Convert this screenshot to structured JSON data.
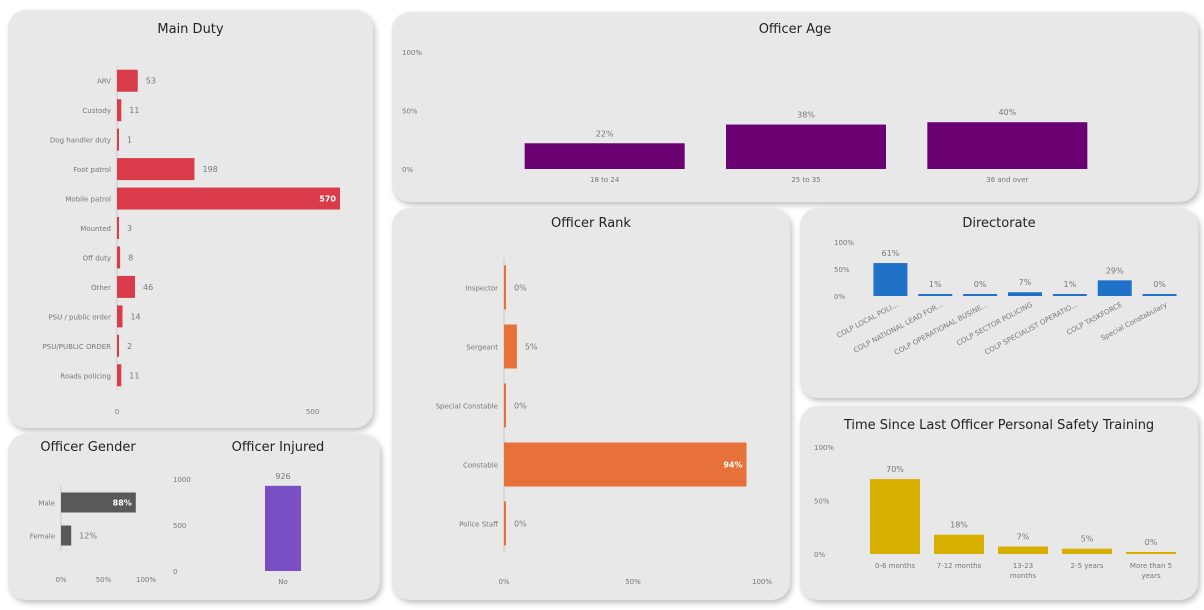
{
  "colors": {
    "duty": "#d93b4a",
    "age": "#6b0072",
    "rank": "#e8713a",
    "directorate": "#1f72c8",
    "gender": "#595959",
    "injured": "#7b4fc4",
    "training": "#d8b000"
  },
  "chart_data": [
    {
      "id": "duty",
      "type": "bar",
      "orientation": "horizontal",
      "title": "Main Duty",
      "categories": [
        "ARV",
        "Custody",
        "Dog handler duty",
        "Foot patrol",
        "Mobile patrol",
        "Mounted",
        "Off duty",
        "Other",
        "PSU / public order",
        "PSU/PUBLIC ORDER",
        "Roads policing"
      ],
      "values": [
        53,
        11,
        1,
        198,
        570,
        3,
        8,
        46,
        14,
        2,
        11
      ],
      "value_labels": [
        "53",
        "11",
        "1",
        "198",
        "570",
        "3",
        "8",
        "46",
        "14",
        "2",
        "11"
      ],
      "xlim": [
        0,
        600
      ],
      "ticks": [
        0,
        500
      ],
      "tick_labels": [
        "0",
        "500"
      ]
    },
    {
      "id": "age",
      "type": "bar",
      "title": "Officer Age",
      "categories": [
        "18 to 24",
        "25 to 35",
        "36 and over"
      ],
      "values": [
        22,
        38,
        40
      ],
      "value_labels": [
        "22%",
        "38%",
        "40%"
      ],
      "ylim": [
        0,
        100
      ],
      "ticks": [
        0,
        50,
        100
      ],
      "tick_labels": [
        "0%",
        "50%",
        "100%"
      ]
    },
    {
      "id": "rank",
      "type": "bar",
      "orientation": "horizontal",
      "title": "Officer Rank",
      "categories": [
        "Inspector",
        "Sergeant",
        "Special Constable",
        "Constable",
        "Police Staff"
      ],
      "values": [
        0,
        5,
        0,
        94,
        0
      ],
      "value_labels": [
        "0%",
        "5%",
        "0%",
        "94%",
        "0%"
      ],
      "xlim": [
        0,
        100
      ],
      "ticks": [
        0,
        50,
        100
      ],
      "tick_labels": [
        "0%",
        "50%",
        "100%"
      ]
    },
    {
      "id": "directorate",
      "type": "bar",
      "title": "Directorate",
      "categories": [
        "COLP LOCAL POLI...",
        "COLP NATIONAL LEAD FOR...",
        "COLP OPERATIONAL BUSINE...",
        "COLP SECTOR POLICING",
        "COLP SPECIALIST OPERATIO...",
        "COLP TASKFORCE",
        "Special Constabulary"
      ],
      "values": [
        61,
        1,
        0,
        7,
        1,
        29,
        0
      ],
      "value_labels": [
        "61%",
        "1%",
        "0%",
        "7%",
        "1%",
        "29%",
        "0%"
      ],
      "ylim": [
        0,
        100
      ],
      "ticks": [
        0,
        50,
        100
      ],
      "tick_labels": [
        "0%",
        "50%",
        "100%"
      ]
    },
    {
      "id": "gender",
      "type": "bar",
      "orientation": "horizontal",
      "title": "Officer Gender",
      "categories": [
        "Male",
        "Female"
      ],
      "values": [
        88,
        12
      ],
      "value_labels": [
        "88%",
        "12%"
      ],
      "xlim": [
        0,
        100
      ],
      "ticks": [
        0,
        50,
        100
      ],
      "tick_labels": [
        "0%",
        "50%",
        "100%"
      ]
    },
    {
      "id": "injured",
      "type": "bar",
      "title": "Officer Injured",
      "categories": [
        "No"
      ],
      "values": [
        926
      ],
      "value_labels": [
        "926"
      ],
      "ylim": [
        0,
        1000
      ],
      "ticks": [
        0,
        500,
        1000
      ],
      "tick_labels": [
        "0",
        "500",
        "1000"
      ]
    },
    {
      "id": "training",
      "type": "bar",
      "title": "Time Since Last Officer Personal Safety Training",
      "categories": [
        "0-6 months",
        "7-12 months",
        "13-23 months",
        "2-5 years",
        "More than 5 years"
      ],
      "values": [
        70,
        18,
        7,
        5,
        0
      ],
      "value_labels": [
        "70%",
        "18%",
        "7%",
        "5%",
        "0%"
      ],
      "ylim": [
        0,
        100
      ],
      "ticks": [
        0,
        50,
        100
      ],
      "tick_labels": [
        "0%",
        "50%",
        "100%"
      ]
    }
  ]
}
